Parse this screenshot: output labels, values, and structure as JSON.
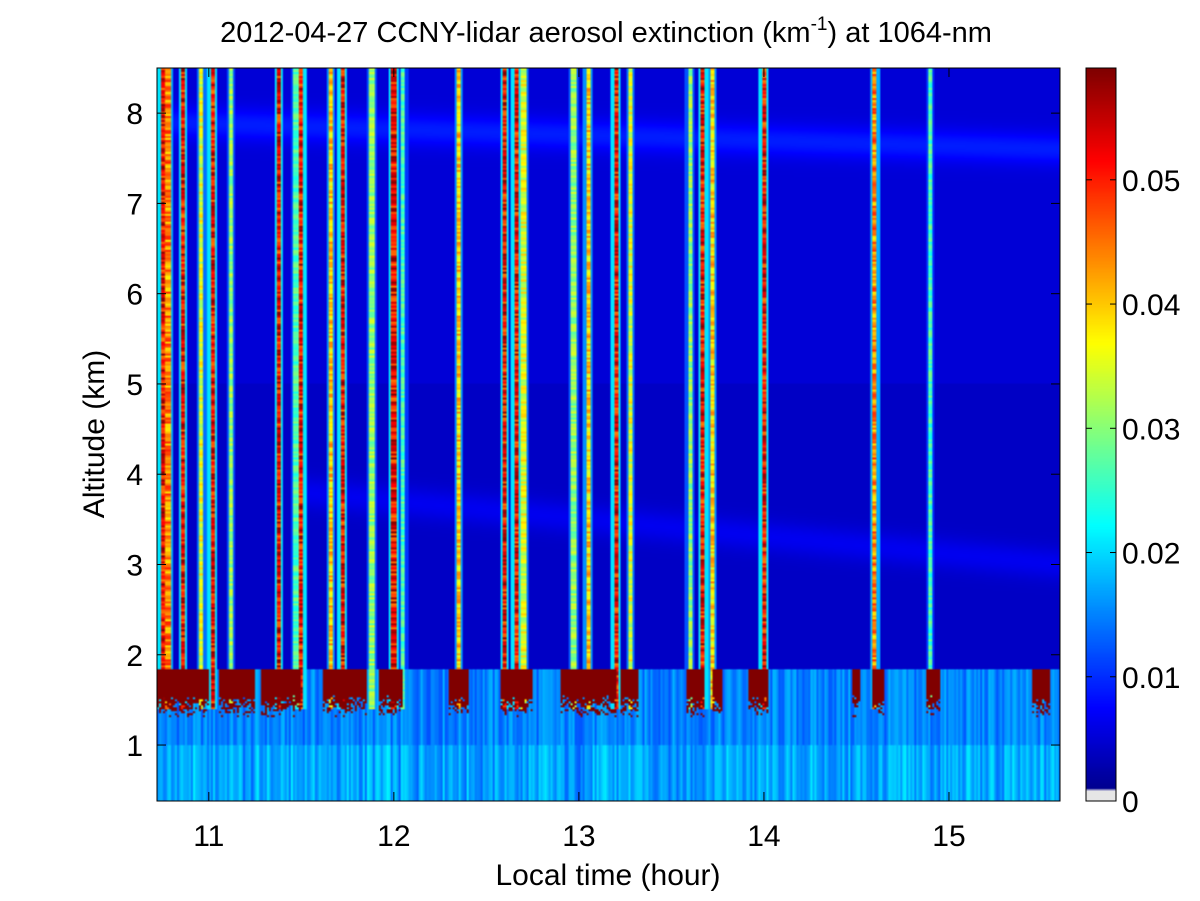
{
  "chart_data": {
    "type": "heatmap",
    "title": "2012-04-27 CCNY-lidar aerosol extinction (km",
    "title_superscript": "-1",
    "title_suffix": ") at 1064-nm",
    "xlabel": "Local time (hour)",
    "ylabel": "Altitude (km)",
    "xlim": [
      10.72,
      15.6
    ],
    "ylim": [
      0.38,
      8.5
    ],
    "x_ticks": [
      "11",
      "12",
      "13",
      "14",
      "15"
    ],
    "x_tick_values": [
      11,
      12,
      13,
      14,
      15
    ],
    "y_ticks": [
      "1",
      "2",
      "3",
      "4",
      "5",
      "6",
      "7",
      "8"
    ],
    "y_tick_values": [
      1,
      2,
      3,
      4,
      5,
      6,
      7,
      8
    ],
    "colorbar": {
      "range": [
        0,
        0.059
      ],
      "ticks": [
        "0",
        "0.01",
        "0.02",
        "0.03",
        "0.04",
        "0.05"
      ],
      "tick_values": [
        0,
        0.01,
        0.02,
        0.03,
        0.04,
        0.05
      ],
      "colormap": "jet",
      "zero_color": "#e6e6e6"
    },
    "background_extinction": 0.004,
    "boundary_layer": {
      "top_altitude_km": 1.85,
      "cloud_base_km": 1.55,
      "below_layer_extinction": 0.012
    },
    "elevated_layers": [
      {
        "time_start": 10.72,
        "time_end": 15.6,
        "altitude_km_start": 7.9,
        "altitude_km_end": 7.6,
        "extinction": 0.008
      },
      {
        "time_start": 11.5,
        "time_end": 15.6,
        "altitude_km_start": 3.8,
        "altitude_km_end": 3.0,
        "extinction": 0.0065
      }
    ],
    "cloud_columns_time": [
      10.75,
      10.78,
      10.86,
      10.96,
      11.02,
      11.12,
      11.38,
      11.47,
      11.5,
      11.66,
      11.72,
      11.88,
      12.0,
      12.05,
      12.35,
      12.6,
      12.66,
      12.7,
      12.97,
      13.05,
      13.2,
      13.28,
      13.6,
      13.67,
      13.72,
      14.0,
      14.6,
      14.9
    ],
    "cloud_columns_extinction": [
      0.059,
      0.05,
      0.059,
      0.04,
      0.059,
      0.035,
      0.059,
      0.03,
      0.059,
      0.045,
      0.059,
      0.035,
      0.059,
      0.03,
      0.045,
      0.059,
      0.059,
      0.04,
      0.035,
      0.045,
      0.059,
      0.04,
      0.035,
      0.059,
      0.045,
      0.059,
      0.05,
      0.03
    ],
    "boundary_cloud_segments": [
      [
        10.72,
        11.0
      ],
      [
        11.05,
        11.25
      ],
      [
        11.28,
        11.5
      ],
      [
        11.62,
        11.85
      ],
      [
        11.92,
        12.05
      ],
      [
        12.3,
        12.4
      ],
      [
        12.58,
        12.75
      ],
      [
        12.9,
        13.2
      ],
      [
        13.22,
        13.32
      ],
      [
        13.58,
        13.68
      ],
      [
        13.72,
        13.78
      ],
      [
        13.92,
        14.02
      ],
      [
        14.48,
        14.52
      ],
      [
        14.58,
        14.65
      ],
      [
        14.88,
        14.95
      ],
      [
        15.45,
        15.55
      ]
    ],
    "grid": false,
    "legend": "none"
  }
}
